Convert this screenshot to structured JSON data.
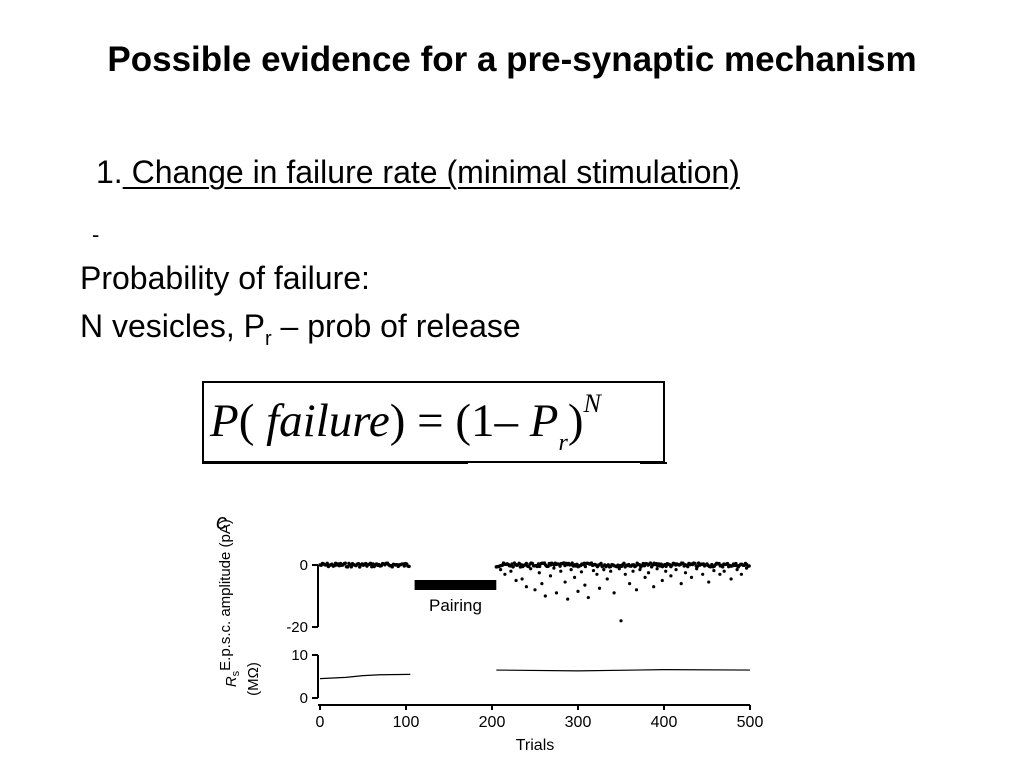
{
  "slide": {
    "title": "Possible evidence for a pre-synaptic mechanism",
    "item_number": "1.",
    "item_text": " Change in failure rate (minimal stimulation)",
    "dash": "-",
    "line1": "Probability of failure:",
    "line2_prefix": "N vesicles, P",
    "line2_sub": "r",
    "line2_suffix": " – prob of release"
  },
  "formula": {
    "P": "P",
    "open": "(",
    "word": "failure",
    "close": ")",
    "eq": "=",
    "paren": "(1",
    "minus": "–",
    "Pr": "P",
    "r": "r",
    "close2": ")",
    "exp": "N"
  },
  "chart_data": [
    {
      "type": "scatter",
      "panel_label": "c",
      "ylabel": "E.p.s.c. amplitude (pA)",
      "yticks": [
        "0",
        "-20"
      ],
      "ylim": [
        -20,
        0
      ],
      "xlim": [
        0,
        500
      ],
      "annotation": "Pairing",
      "annotation_range": [
        110,
        205
      ],
      "series": [
        {
          "x_range": [
            0,
            105
          ],
          "level": 0,
          "failures": false
        },
        {
          "x_range": [
            205,
            500
          ],
          "level": 0,
          "failures": true,
          "points": [
            [
              210,
              -1.5
            ],
            [
              215,
              -3
            ],
            [
              222,
              -2
            ],
            [
              228,
              -5
            ],
            [
              235,
              -4.5
            ],
            [
              240,
              -7
            ],
            [
              245,
              -1.2
            ],
            [
              250,
              -8
            ],
            [
              255,
              -2.5
            ],
            [
              258,
              -6
            ],
            [
              262,
              -10
            ],
            [
              268,
              -3.5
            ],
            [
              272,
              -1
            ],
            [
              275,
              -9
            ],
            [
              280,
              -2
            ],
            [
              285,
              -5.5
            ],
            [
              288,
              -11
            ],
            [
              292,
              -1.5
            ],
            [
              296,
              -4
            ],
            [
              300,
              -8.5
            ],
            [
              304,
              -2.2
            ],
            [
              308,
              -6.5
            ],
            [
              312,
              -10.5
            ],
            [
              318,
              -1.8
            ],
            [
              322,
              -3
            ],
            [
              325,
              -7.5
            ],
            [
              330,
              -1.5
            ],
            [
              334,
              -4.5
            ],
            [
              338,
              -2
            ],
            [
              342,
              -9
            ],
            [
              348,
              -1.2
            ],
            [
              350,
              -18
            ],
            [
              355,
              -3
            ],
            [
              360,
              -6
            ],
            [
              364,
              -2
            ],
            [
              368,
              -8
            ],
            [
              372,
              -1.5
            ],
            [
              378,
              -4
            ],
            [
              382,
              -2.5
            ],
            [
              388,
              -7
            ],
            [
              392,
              -1.2
            ],
            [
              398,
              -5
            ],
            [
              402,
              -2
            ],
            [
              408,
              -3.5
            ],
            [
              414,
              -1.5
            ],
            [
              420,
              -6
            ],
            [
              425,
              -2.5
            ],
            [
              432,
              -4
            ],
            [
              438,
              -1.2
            ],
            [
              445,
              -3
            ],
            [
              452,
              -5.5
            ],
            [
              458,
              -1.8
            ],
            [
              465,
              -3
            ],
            [
              470,
              -2
            ],
            [
              478,
              -4.5
            ],
            [
              485,
              -1.5
            ],
            [
              490,
              -3
            ],
            [
              496,
              -1
            ]
          ]
        }
      ]
    },
    {
      "type": "line",
      "ylabel_main": "R",
      "ylabel_sub": "s",
      "ylabel_unit": "(MΩ)",
      "yticks": [
        "10",
        "0"
      ],
      "ylim": [
        0,
        10
      ],
      "xlim": [
        0,
        500
      ],
      "xticks": [
        "0",
        "100",
        "200",
        "300",
        "400",
        "500"
      ],
      "xlabel": "Trials",
      "segments": [
        {
          "x": [
            0,
            30,
            50,
            70,
            105
          ],
          "y": [
            4.5,
            4.8,
            5.2,
            5.4,
            5.5
          ]
        },
        {
          "x": [
            205,
            300,
            400,
            500
          ],
          "y": [
            6.5,
            6.3,
            6.6,
            6.5
          ]
        }
      ]
    }
  ]
}
